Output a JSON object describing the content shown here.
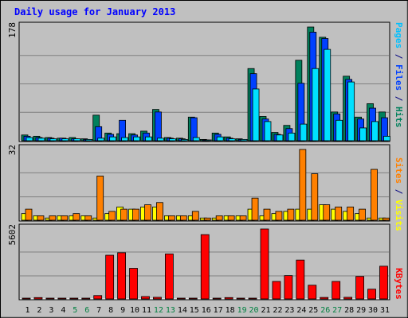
{
  "chart_data": {
    "type": "bar",
    "title": "Daily usage for January 2013",
    "categories": [
      "1",
      "2",
      "3",
      "4",
      "5",
      "6",
      "7",
      "8",
      "9",
      "10",
      "11",
      "12",
      "13",
      "14",
      "15",
      "16",
      "17",
      "18",
      "19",
      "20",
      "21",
      "22",
      "23",
      "24",
      "25",
      "26",
      "27",
      "28",
      "29",
      "30",
      "31"
    ],
    "weekend_days": [
      "5",
      "6",
      "12",
      "13",
      "19",
      "20",
      "26",
      "27"
    ],
    "panels": [
      {
        "id": "hits_files_pages",
        "scale_label": "178",
        "ymax": 178,
        "axis_labels": [
          {
            "text": "Pages",
            "color": "#00c0ff"
          },
          {
            "text": " / ",
            "color": "#000080"
          },
          {
            "text": "Files",
            "color": "#0040ff"
          },
          {
            "text": " / ",
            "color": "#000080"
          },
          {
            "text": "Hits",
            "color": "#00805c"
          }
        ],
        "series": [
          {
            "name": "Hits",
            "color": "#00805c",
            "values": [
              9,
              7,
              5,
              4,
              5,
              3,
              40,
              12,
              11,
              11,
              15,
              49,
              5,
              4,
              37,
              2,
              12,
              6,
              3,
              113,
              38,
              13,
              24,
              126,
              178,
              162,
              45,
              101,
              37,
              58,
              45
            ]
          },
          {
            "name": "Files",
            "color": "#0040ff",
            "values": [
              7,
              5,
              4,
              4,
              3,
              2,
              22,
              10,
              32,
              9,
              12,
              45,
              4,
              3,
              36,
              1,
              10,
              4,
              2,
              105,
              34,
              10,
              19,
              90,
              170,
              160,
              42,
              96,
              34,
              51,
              36
            ]
          },
          {
            "name": "Pages",
            "color": "#00e0ff",
            "values": [
              5,
              4,
              3,
              3,
              3,
              2,
              4,
              6,
              5,
              6,
              6,
              4,
              3,
              2,
              5,
              1,
              6,
              3,
              2,
              81,
              30,
              9,
              12,
              26,
              113,
              143,
              32,
              92,
              20,
              30,
              7
            ]
          }
        ]
      },
      {
        "id": "visits_sites",
        "scale_label": "32",
        "ymax": 32,
        "axis_labels": [
          {
            "text": "Sites",
            "color": "#ff8000"
          },
          {
            "text": " / ",
            "color": "#000080"
          },
          {
            "text": "Visits",
            "color": "#ffff00"
          }
        ],
        "series": [
          {
            "name": "Visits",
            "color": "#ffff00",
            "values": [
              3,
              2,
              1,
              2,
              2,
              2,
              1,
              3,
              6,
              5,
              6,
              6,
              2,
              2,
              2,
              1,
              1,
              2,
              2,
              5,
              2,
              3,
              4,
              5,
              5,
              7,
              5,
              4,
              3,
              1,
              1
            ]
          },
          {
            "name": "Sites",
            "color": "#ff8000",
            "values": [
              5,
              2,
              2,
              2,
              3,
              2,
              20,
              4,
              5,
              5,
              7,
              8,
              2,
              2,
              4,
              1,
              2,
              2,
              2,
              10,
              5,
              4,
              5,
              32,
              21,
              7,
              6,
              6,
              5,
              23,
              1
            ]
          }
        ]
      },
      {
        "id": "kbytes",
        "scale_label": "5602",
        "ymax": 5602,
        "axis_labels": [
          {
            "text": "KBytes",
            "color": "#ff0000"
          }
        ],
        "series": [
          {
            "name": "KBytes",
            "color": "#ff0000",
            "values": [
              40,
              110,
              40,
              40,
              60,
              40,
              270,
              3500,
              3700,
              2450,
              190,
              130,
              3600,
              50,
              50,
              5150,
              40,
              110,
              40,
              40,
              5602,
              1400,
              1870,
              3110,
              1100,
              120,
              1400,
              130,
              1800,
              780,
              2620
            ]
          }
        ]
      }
    ]
  }
}
